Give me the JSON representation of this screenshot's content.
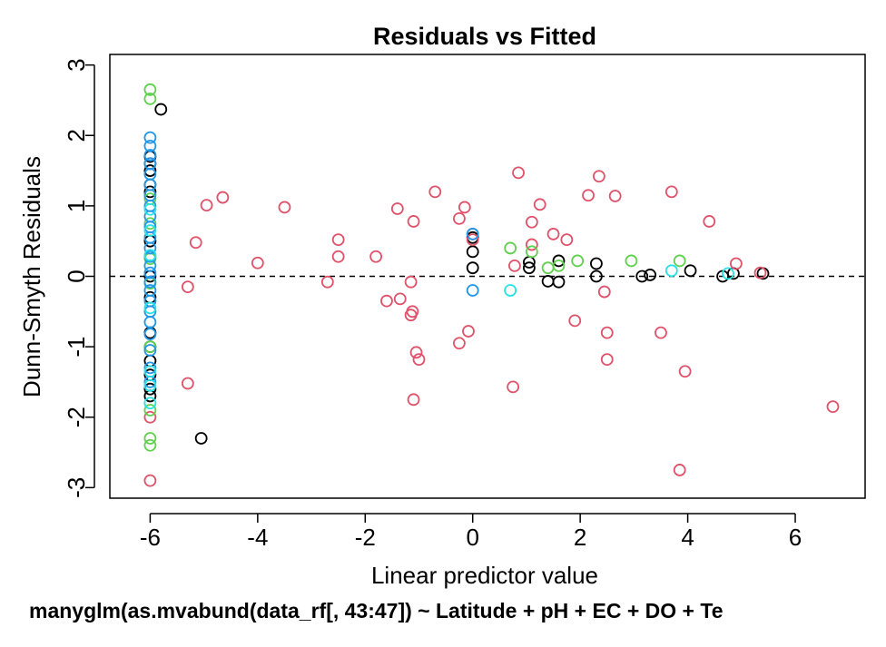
{
  "chart_data": {
    "type": "scatter",
    "title": "Residuals vs Fitted",
    "xlabel": "Linear predictor value",
    "ylabel": "Dunn-Smyth Residuals",
    "subtitle": "manyglm(as.mvabund(data_rf[, 43:47]) ~ Latitude + pH + EC + DO + Te",
    "xlim": [
      -6.75,
      7.3
    ],
    "ylim": [
      -3.15,
      3.15
    ],
    "x_ticks": [
      -6,
      -4,
      -2,
      0,
      2,
      4,
      6
    ],
    "y_ticks": [
      -3,
      -2,
      -1,
      0,
      1,
      2,
      3
    ],
    "x_tick_labels": [
      "-6",
      "-4",
      "-2",
      "0",
      "2",
      "4",
      "6"
    ],
    "y_tick_labels": [
      "-3",
      "-2",
      "-1",
      "0",
      "1",
      "2",
      "3"
    ],
    "reference_line": {
      "y": 0,
      "style": "dashed"
    },
    "marker": "open-circle",
    "grid": false,
    "legend": "none",
    "colors": {
      "black": "#000000",
      "red": "#DF536B",
      "green": "#61D04F",
      "blue": "#2297E6",
      "cyan": "#28E2E5"
    },
    "series": [
      {
        "color_key": "black",
        "points": [
          [
            -6,
            1.7
          ],
          [
            -6,
            1.6
          ],
          [
            -6,
            1.5
          ],
          [
            -6,
            1.3
          ],
          [
            -6,
            1.2
          ],
          [
            -6,
            0.5
          ],
          [
            -6,
            0.0
          ],
          [
            -6,
            -0.3
          ],
          [
            -6,
            -0.8
          ],
          [
            -6,
            -1.0
          ],
          [
            -6,
            -1.2
          ],
          [
            -6,
            -1.4
          ],
          [
            -6,
            -1.6
          ],
          [
            -6,
            -1.7
          ],
          [
            -5.8,
            2.37
          ],
          [
            -5.05,
            -2.3
          ],
          [
            0,
            0.55
          ],
          [
            0,
            0.35
          ],
          [
            0,
            0.12
          ],
          [
            1.05,
            0.2
          ],
          [
            1.05,
            0.12
          ],
          [
            1.4,
            -0.07
          ],
          [
            1.6,
            0.22
          ],
          [
            1.6,
            -0.08
          ],
          [
            2.3,
            0.18
          ],
          [
            2.3,
            0.0
          ],
          [
            3.15,
            0.0
          ],
          [
            3.3,
            0.02
          ],
          [
            4.05,
            0.08
          ],
          [
            4.65,
            0.0
          ],
          [
            4.85,
            0.04
          ],
          [
            5.4,
            0.04
          ]
        ]
      },
      {
        "color_key": "red",
        "points": [
          [
            -6,
            -2.0
          ],
          [
            -6,
            -2.9
          ],
          [
            -5.3,
            -0.15
          ],
          [
            -5.3,
            -1.52
          ],
          [
            -5.15,
            0.48
          ],
          [
            -4.95,
            1.01
          ],
          [
            -4.65,
            1.12
          ],
          [
            -4.0,
            0.19
          ],
          [
            -3.5,
            0.98
          ],
          [
            -2.7,
            -0.08
          ],
          [
            -2.5,
            0.52
          ],
          [
            -2.5,
            0.28
          ],
          [
            -1.8,
            0.28
          ],
          [
            -1.6,
            -0.35
          ],
          [
            -1.4,
            0.96
          ],
          [
            -1.35,
            -0.32
          ],
          [
            -1.15,
            -0.08
          ],
          [
            -1.15,
            -0.55
          ],
          [
            -1.12,
            -0.5
          ],
          [
            -1.1,
            0.78
          ],
          [
            -1.05,
            -1.08
          ],
          [
            -1.0,
            -1.18
          ],
          [
            -1.1,
            -1.75
          ],
          [
            -0.7,
            1.2
          ],
          [
            -0.25,
            0.82
          ],
          [
            -0.25,
            -0.95
          ],
          [
            -0.15,
            0.98
          ],
          [
            -0.08,
            -0.78
          ],
          [
            0,
            0.6
          ],
          [
            0,
            0.52
          ],
          [
            0.75,
            -1.57
          ],
          [
            0.78,
            0.15
          ],
          [
            0.85,
            1.47
          ],
          [
            1.1,
            0.45
          ],
          [
            1.1,
            0.77
          ],
          [
            1.25,
            1.02
          ],
          [
            1.5,
            0.6
          ],
          [
            1.75,
            0.52
          ],
          [
            1.9,
            -0.63
          ],
          [
            2.15,
            1.15
          ],
          [
            2.35,
            1.42
          ],
          [
            2.45,
            -0.22
          ],
          [
            2.5,
            -0.8
          ],
          [
            2.5,
            -1.18
          ],
          [
            2.65,
            1.14
          ],
          [
            3.5,
            -0.8
          ],
          [
            3.7,
            1.2
          ],
          [
            3.85,
            -2.75
          ],
          [
            3.95,
            -1.35
          ],
          [
            4.4,
            0.78
          ],
          [
            4.9,
            0.18
          ],
          [
            5.35,
            0.05
          ],
          [
            6.7,
            -1.85
          ]
        ]
      },
      {
        "color_key": "green",
        "points": [
          [
            -6,
            2.65
          ],
          [
            -6,
            2.52
          ],
          [
            -6,
            1.1
          ],
          [
            -6,
            0.75
          ],
          [
            -6,
            0.25
          ],
          [
            -6,
            -0.1
          ],
          [
            -6,
            -1.0
          ],
          [
            -6,
            -1.9
          ],
          [
            -6,
            -2.3
          ],
          [
            -6,
            -2.4
          ],
          [
            0.7,
            0.4
          ],
          [
            1.1,
            0.35
          ],
          [
            1.4,
            0.12
          ],
          [
            1.6,
            0.15
          ],
          [
            1.95,
            0.22
          ],
          [
            2.95,
            0.22
          ],
          [
            3.85,
            0.22
          ]
        ]
      },
      {
        "color_key": "blue",
        "points": [
          [
            -6,
            1.97
          ],
          [
            -6,
            1.85
          ],
          [
            -6,
            1.72
          ],
          [
            -6,
            1.6
          ],
          [
            -6,
            1.45
          ],
          [
            -6,
            1.3
          ],
          [
            -6,
            1.15
          ],
          [
            -6,
            1.0
          ],
          [
            -6,
            0.85
          ],
          [
            -6,
            0.7
          ],
          [
            -6,
            0.55
          ],
          [
            -6,
            0.4
          ],
          [
            -6,
            0.28
          ],
          [
            -6,
            0.15
          ],
          [
            -6,
            0.05
          ],
          [
            -6,
            -0.08
          ],
          [
            -6,
            -0.2
          ],
          [
            -6,
            -0.35
          ],
          [
            -6,
            -0.5
          ],
          [
            -6,
            -0.65
          ],
          [
            -6,
            -0.82
          ],
          [
            -6,
            -1.05
          ],
          [
            -6,
            -1.3
          ],
          [
            -6,
            -1.5
          ],
          [
            0,
            0.6
          ],
          [
            0,
            -0.2
          ]
        ]
      },
      {
        "color_key": "cyan",
        "points": [
          [
            -6,
            0.95
          ],
          [
            -6,
            0.65
          ],
          [
            -6,
            0.3
          ],
          [
            -6,
            -0.45
          ],
          [
            -6,
            -1.35
          ],
          [
            -6,
            -1.55
          ],
          [
            -6,
            -1.8
          ],
          [
            0.7,
            -0.2
          ],
          [
            3.7,
            0.08
          ],
          [
            4.75,
            0.04
          ]
        ]
      }
    ]
  }
}
